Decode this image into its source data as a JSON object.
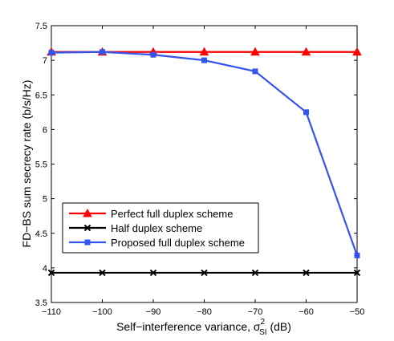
{
  "chart_data": {
    "type": "line",
    "xlabel": "Self−interference variance, σ",
    "xlabel_sup": "2",
    "xlabel_sub": "SI",
    "xlabel_tail": " (dB)",
    "ylabel": "FD−BS  sum secrecy rate (b/s/Hz)",
    "xlim": [
      -110,
      -50
    ],
    "ylim": [
      3.5,
      7.5
    ],
    "x_ticks": [
      -110,
      -100,
      -90,
      -80,
      -70,
      -60,
      -50
    ],
    "x_tick_labels": [
      "−110",
      "−100",
      "−90",
      "−80",
      "−70",
      "−60",
      "−50"
    ],
    "y_ticks": [
      3.5,
      4,
      4.5,
      5,
      5.5,
      6,
      6.5,
      7,
      7.5
    ],
    "y_tick_labels": [
      "3.5",
      "4",
      "4.5",
      "5",
      "5.5",
      "6",
      "6.5",
      "7",
      "7.5"
    ],
    "grid": false,
    "legend_position": "bottom-left",
    "x": [
      -110,
      -100,
      -90,
      -80,
      -70,
      -60,
      -50
    ],
    "series": [
      {
        "name": "Perfect full duplex scheme",
        "color": "#ff0000",
        "marker": "triangle",
        "values": [
          7.12,
          7.12,
          7.12,
          7.12,
          7.12,
          7.12,
          7.12
        ]
      },
      {
        "name": "Half duplex scheme",
        "color": "#000000",
        "marker": "x",
        "values": [
          3.93,
          3.93,
          3.93,
          3.93,
          3.93,
          3.93,
          3.93
        ]
      },
      {
        "name": "Proposed full duplex scheme",
        "color": "#3355ee",
        "marker": "square",
        "values": [
          7.11,
          7.12,
          7.08,
          7.0,
          6.84,
          6.25,
          4.18
        ]
      }
    ]
  }
}
